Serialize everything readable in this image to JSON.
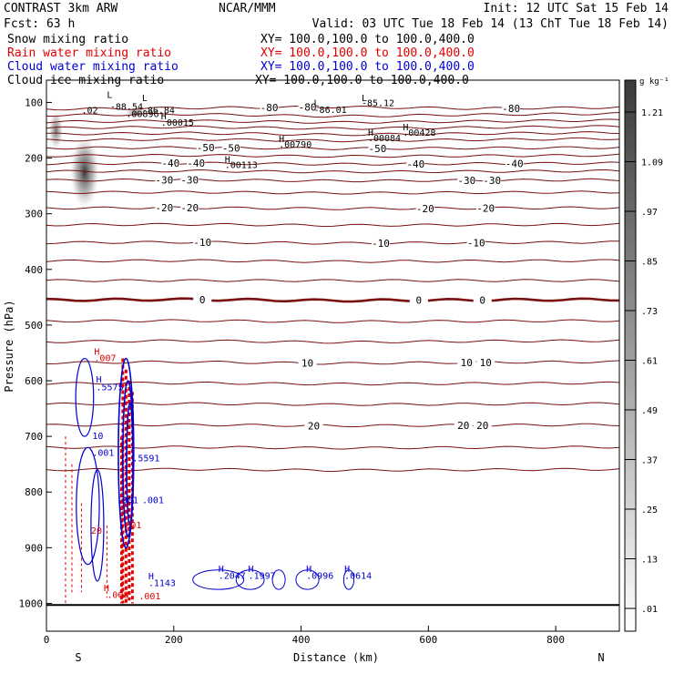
{
  "header": {
    "left_line1": "CONTRAST  3km ARW",
    "center_line1": "NCAR/MMM",
    "right_line1": "Init: 12 UTC Sat 15 Feb 14",
    "left_line2": "Fcst:   63 h",
    "right_line2": "Valid: 03 UTC Tue 18 Feb 14 (13 ChT Tue 18 Feb 14)",
    "fields": [
      {
        "label": "Snow mixing ratio",
        "xy": "XY= 100.0,100.0 to 100.0,400.0",
        "color": "#000000"
      },
      {
        "label": "Rain water mixing ratio",
        "xy": "XY= 100.0,100.0 to 100.0,400.0",
        "color": "#e00000"
      },
      {
        "label": "Cloud water mixing ratio",
        "xy": "XY= 100.0,100.0 to 100.0,400.0",
        "color": "#0000d0"
      },
      {
        "label": "Cloud ice mixing ratio",
        "xy": "XY= 100.0,100.0 to 100.0,400.0",
        "color": "#000000"
      }
    ]
  },
  "chart_data": {
    "type": "contour",
    "xlabel": "Distance (km)",
    "ylabel": "Pressure (hPa)",
    "xlim": [
      0,
      900
    ],
    "ylim": [
      1050,
      60
    ],
    "x_ticks": [
      0,
      200,
      400,
      600,
      800
    ],
    "y_ticks": [
      100,
      200,
      300,
      400,
      500,
      600,
      700,
      800,
      900,
      1000
    ],
    "end_labels": {
      "left": "S",
      "right": "N"
    },
    "colorbar": {
      "unit": "g kg⁻¹",
      "ticks": [
        ".01",
        ".13",
        ".25",
        ".37",
        ".49",
        ".61",
        ".73",
        ".85",
        ".97",
        "1.09",
        "1.21"
      ]
    },
    "temperature_contours": [
      {
        "p": [
          112,
          110,
          108,
          111,
          109
        ],
        "label": "-80",
        "labels_x": [
          350,
          410,
          730
        ]
      },
      {
        "p": [
          123,
          121,
          125,
          122,
          120
        ]
      },
      {
        "p": [
          135,
          133,
          136,
          134,
          132
        ]
      },
      {
        "p": [
          146,
          144,
          147,
          145,
          143
        ]
      },
      {
        "p": [
          157,
          155,
          158,
          156,
          154
        ]
      },
      {
        "p": [
          168,
          166,
          169,
          167,
          165
        ]
      },
      {
        "p": [
          182,
          181,
          183,
          182,
          181
        ],
        "label": "-50",
        "labels_x": [
          250,
          290,
          520
        ]
      },
      {
        "p": [
          196,
          195,
          197,
          196,
          195
        ]
      },
      {
        "p": [
          210,
          209,
          211,
          210,
          209
        ],
        "label": "-40",
        "labels_x": [
          195,
          235,
          580,
          735
        ]
      },
      {
        "p": [
          224,
          223,
          225,
          224,
          223
        ]
      },
      {
        "p": [
          240,
          239,
          241,
          240,
          239
        ],
        "label": "-30",
        "labels_x": [
          185,
          225,
          660,
          700
        ]
      },
      {
        "p": [
          262,
          261,
          263,
          262,
          261
        ]
      },
      {
        "p": [
          290,
          289,
          291,
          290,
          289
        ],
        "label": "-20",
        "labels_x": [
          185,
          225,
          595,
          690
        ]
      },
      {
        "p": [
          320,
          319,
          321,
          320,
          319
        ]
      },
      {
        "p": [
          352,
          351,
          353,
          352,
          351
        ],
        "label": "-10",
        "labels_x": [
          245,
          525,
          675
        ]
      },
      {
        "p": [
          385,
          384,
          386,
          385,
          384
        ]
      },
      {
        "p": [
          420,
          420,
          420,
          420,
          420
        ]
      },
      {
        "p": [
          455,
          454,
          456,
          455,
          454
        ],
        "label": "0",
        "labels_x": [
          245,
          585,
          685
        ],
        "bold": true
      },
      {
        "p": [
          493,
          492,
          494,
          493,
          492
        ]
      },
      {
        "p": [
          530,
          528,
          531,
          529,
          528
        ]
      },
      {
        "p": [
          568,
          566,
          569,
          567,
          566
        ],
        "label": "10",
        "labels_x": [
          410,
          660,
          690
        ]
      },
      {
        "p": [
          605,
          604,
          606,
          605,
          604
        ]
      },
      {
        "p": [
          642,
          641,
          643,
          642,
          641
        ]
      },
      {
        "p": [
          680,
          679,
          681,
          680,
          679
        ],
        "label": "20",
        "labels_x": [
          420,
          655,
          685
        ]
      },
      {
        "p": [
          720,
          719,
          721,
          720,
          719
        ]
      },
      {
        "p": [
          760,
          759,
          761,
          760,
          759
        ]
      }
    ],
    "annotations": {
      "black": [
        {
          "text": "L",
          "x": 95,
          "p": 92
        },
        {
          "text": "L",
          "x": 150,
          "p": 98
        },
        {
          "text": ".02",
          "x": 55,
          "p": 120
        },
        {
          "text": "-88.54",
          "x": 100,
          "p": 113
        },
        {
          "text": ".00896",
          "x": 125,
          "p": 126
        },
        {
          "text": "-86.84",
          "x": 150,
          "p": 120
        },
        {
          "text": "H",
          "x": 180,
          "p": 130
        },
        {
          "text": ".00015",
          "x": 180,
          "p": 142
        },
        {
          "text": "L",
          "x": 420,
          "p": 107
        },
        {
          "text": "-86.01",
          "x": 420,
          "p": 119
        },
        {
          "text": "L",
          "x": 495,
          "p": 98
        },
        {
          "text": "-85.12",
          "x": 495,
          "p": 107
        },
        {
          "text": "H",
          "x": 365,
          "p": 171
        },
        {
          "text": ".00790",
          "x": 365,
          "p": 181
        },
        {
          "text": "H",
          "x": 505,
          "p": 160
        },
        {
          "text": ".00084",
          "x": 505,
          "p": 170
        },
        {
          "text": "H",
          "x": 560,
          "p": 150
        },
        {
          "text": ".00428",
          "x": 560,
          "p": 160
        },
        {
          "text": "H",
          "x": 280,
          "p": 208
        },
        {
          "text": ".00113",
          "x": 280,
          "p": 218
        }
      ],
      "red": [
        {
          "text": "H",
          "x": 75,
          "p": 553
        },
        {
          "text": ".007",
          "x": 75,
          "p": 565
        },
        {
          "text": "H",
          "x": 90,
          "p": 978
        },
        {
          "text": ".008",
          "x": 95,
          "p": 990
        },
        {
          "text": ".001",
          "x": 145,
          "p": 993
        },
        {
          "text": ".001",
          "x": 115,
          "p": 865
        },
        {
          "text": "20",
          "x": 70,
          "p": 875
        }
      ],
      "blue": [
        {
          "text": "H",
          "x": 78,
          "p": 603
        },
        {
          "text": ".5575",
          "x": 78,
          "p": 617
        },
        {
          "text": "10",
          "x": 72,
          "p": 705
        },
        {
          "text": ".001",
          "x": 72,
          "p": 735
        },
        {
          "text": ".5591",
          "x": 135,
          "p": 745
        },
        {
          "text": ".001",
          "x": 110,
          "p": 820
        },
        {
          "text": ".001",
          "x": 150,
          "p": 820
        },
        {
          "text": "H",
          "x": 160,
          "p": 957
        },
        {
          "text": ".1143",
          "x": 160,
          "p": 969
        },
        {
          "text": "H",
          "x": 270,
          "p": 944
        },
        {
          "text": ".2047",
          "x": 270,
          "p": 956
        },
        {
          "text": "H",
          "x": 317,
          "p": 944
        },
        {
          "text": ".1997",
          "x": 317,
          "p": 956
        },
        {
          "text": "H",
          "x": 408,
          "p": 944
        },
        {
          "text": ".0996",
          "x": 408,
          "p": 956
        },
        {
          "text": "H",
          "x": 468,
          "p": 944
        },
        {
          "text": ".0614",
          "x": 468,
          "p": 956
        }
      ]
    }
  }
}
